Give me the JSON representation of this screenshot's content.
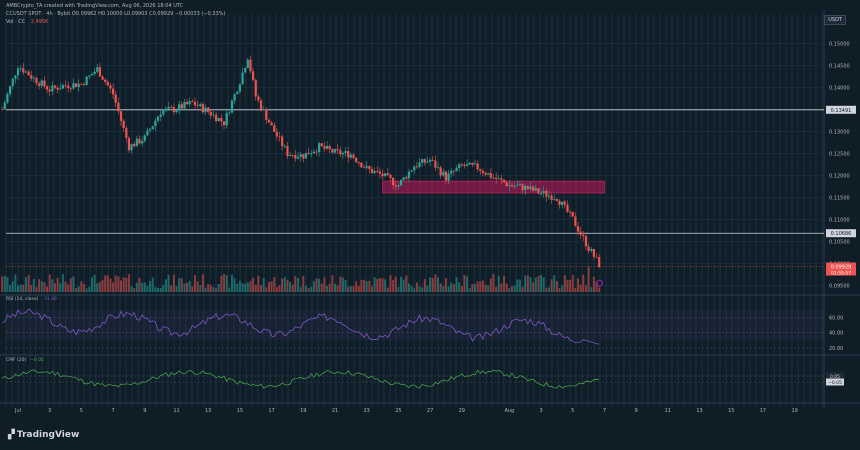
{
  "header": {
    "credit": "AMBCrypto_TA created with TradingView.com, Aug 06, 2026 18:04 UTC",
    "symbol_line": "CCUSDT SPOT · 4h · Bybit  O0.09962 H0.10000 L0.09903 C0.09929 −0.00033 (−0.33%)",
    "volume_label": "Vol · CC",
    "volume_value": "2.495K"
  },
  "currency_badge": "USDT",
  "brand": "TradingView",
  "colors": {
    "background": "#0f1d27",
    "bull": "#26a69a",
    "bear": "#ef5350",
    "zone": "#c2185b",
    "rsi": "#7e57c2",
    "cmf": "#4caf50",
    "text": "#b2b5be"
  },
  "chart_data": {
    "type": "candlestick",
    "price_axis": {
      "ticks": [
        "0.15000",
        "0.14500",
        "0.14000",
        "0.13500",
        "0.13000",
        "0.12500",
        "0.12000",
        "0.11500",
        "0.11000",
        "0.10500",
        "0.10000",
        "0.09500"
      ],
      "range": [
        0.0935,
        0.1535
      ]
    },
    "date_axis": [
      "Jul",
      "3",
      "5",
      "7",
      "9",
      "11",
      "13",
      "15",
      "17",
      "19",
      "21",
      "23",
      "25",
      "27",
      "29",
      "Aug",
      "3",
      "5",
      "7",
      "9",
      "11",
      "13",
      "15",
      "17",
      "19"
    ],
    "support_resistance": [
      {
        "level": 0.13491,
        "label": "0.13491"
      },
      {
        "level": 0.10686,
        "label": "0.10686"
      }
    ],
    "zone": {
      "from_date": "Jul 24",
      "to_date": "Aug 7",
      "low": 0.116,
      "high": 0.1187
    },
    "last_price": {
      "value": 0.09929,
      "label": "0.09929",
      "countdown": "01:55:57"
    },
    "close_path": [
      {
        "x": "Jun 30",
        "y": 0.135
      },
      {
        "x": "Jul 1",
        "y": 0.145
      },
      {
        "x": "Jul 2",
        "y": 0.142
      },
      {
        "x": "Jul 3",
        "y": 0.1395
      },
      {
        "x": "Jul 4",
        "y": 0.1405
      },
      {
        "x": "Jul 5",
        "y": 0.1408
      },
      {
        "x": "Jul 6",
        "y": 0.1442
      },
      {
        "x": "Jul 7",
        "y": 0.1385
      },
      {
        "x": "Jul 8",
        "y": 0.1265
      },
      {
        "x": "Jul 9",
        "y": 0.1285
      },
      {
        "x": "Jul 10",
        "y": 0.1345
      },
      {
        "x": "Jul 11",
        "y": 0.1352
      },
      {
        "x": "Jul 12",
        "y": 0.1365
      },
      {
        "x": "Jul 13",
        "y": 0.1345
      },
      {
        "x": "Jul 14",
        "y": 0.132
      },
      {
        "x": "Jul 15",
        "y": 0.1415
      },
      {
        "x": "Jul 15 12:00",
        "y": 0.147
      },
      {
        "x": "Jul 16",
        "y": 0.138
      },
      {
        "x": "Jul 17",
        "y": 0.131
      },
      {
        "x": "Jul 18",
        "y": 0.125
      },
      {
        "x": "Jul 19",
        "y": 0.1245
      },
      {
        "x": "Jul 20",
        "y": 0.1265
      },
      {
        "x": "Jul 21",
        "y": 0.1252
      },
      {
        "x": "Jul 22",
        "y": 0.1248
      },
      {
        "x": "Jul 23",
        "y": 0.1215
      },
      {
        "x": "Jul 24",
        "y": 0.12
      },
      {
        "x": "Jul 25",
        "y": 0.1178
      },
      {
        "x": "Jul 26",
        "y": 0.1222
      },
      {
        "x": "Jul 27",
        "y": 0.1235
      },
      {
        "x": "Jul 28",
        "y": 0.1195
      },
      {
        "x": "Jul 29",
        "y": 0.1222
      },
      {
        "x": "Jul 30",
        "y": 0.1218
      },
      {
        "x": "Jul 31",
        "y": 0.1195
      },
      {
        "x": "Aug 1",
        "y": 0.1178
      },
      {
        "x": "Aug 2",
        "y": 0.1172
      },
      {
        "x": "Aug 3",
        "y": 0.116
      },
      {
        "x": "Aug 4",
        "y": 0.115
      },
      {
        "x": "Aug 5",
        "y": 0.11
      },
      {
        "x": "Aug 6",
        "y": 0.1035
      },
      {
        "x": "Aug 6 18:00",
        "y": 0.0993
      }
    ],
    "rsi": {
      "label": "RSI (14, close)",
      "value": "31.46",
      "ticks": [
        "60.00",
        "40.00",
        "20.00"
      ],
      "range": [
        15,
        85
      ]
    },
    "cmf": {
      "label": "CMF (20)",
      "value": "−0.05",
      "ticks": [
        "0.05",
        "−0.05"
      ],
      "range": [
        -0.35,
        0.35
      ]
    }
  }
}
